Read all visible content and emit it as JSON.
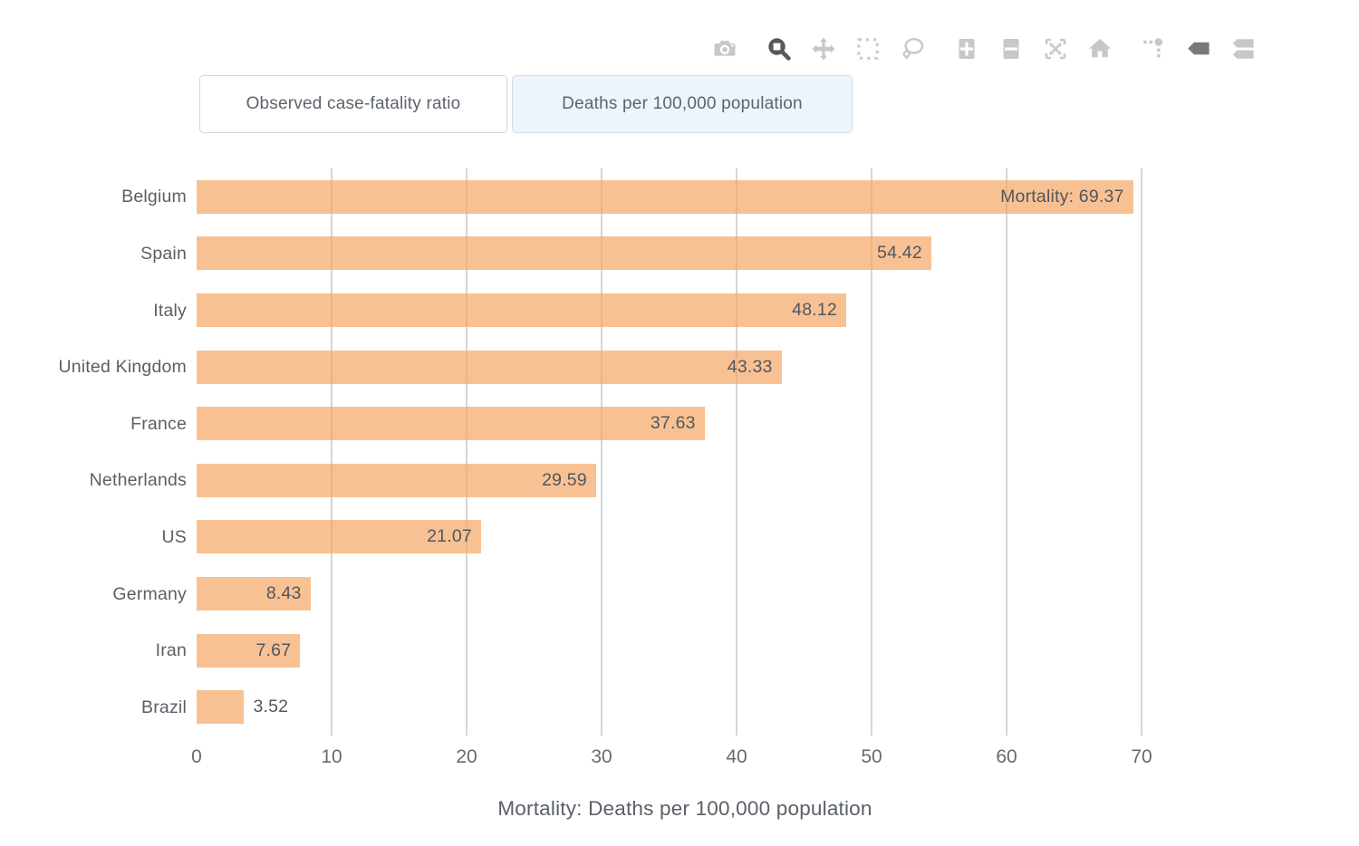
{
  "buttons": [
    {
      "label": "Observed case-fatality ratio",
      "active": false
    },
    {
      "label": "Deaths per 100,000 population",
      "active": true
    }
  ],
  "modebar": {
    "icons": [
      {
        "name": "camera-icon",
        "active": false
      },
      {
        "name": "zoom-icon",
        "active": true
      },
      {
        "name": "pan-icon",
        "active": false
      },
      {
        "name": "box-select-icon",
        "active": false
      },
      {
        "name": "lasso-select-icon",
        "active": false
      },
      {
        "name": "zoom-in-icon",
        "active": false
      },
      {
        "name": "zoom-out-icon",
        "active": false
      },
      {
        "name": "autoscale-icon",
        "active": false
      },
      {
        "name": "reset-axes-home-icon",
        "active": false
      },
      {
        "name": "toggle-spikelines-icon",
        "active": false
      },
      {
        "name": "hover-closest-icon",
        "active": true
      },
      {
        "name": "hover-compare-icon",
        "active": false
      }
    ]
  },
  "chart_data": {
    "type": "bar",
    "orientation": "horizontal",
    "categories": [
      "Belgium",
      "Spain",
      "Italy",
      "United Kingdom",
      "France",
      "Netherlands",
      "US",
      "Germany",
      "Iran",
      "Brazil"
    ],
    "values": [
      69.37,
      54.42,
      48.12,
      43.33,
      37.63,
      29.59,
      21.07,
      8.43,
      7.67,
      3.52
    ],
    "bar_labels": [
      "Mortality: 69.37",
      "54.42",
      "48.12",
      "43.33",
      "37.63",
      "29.59",
      "21.07",
      "8.43",
      "7.67",
      "3.52"
    ],
    "xlabel": "Mortality: Deaths per 100,000 population",
    "ylabel": "",
    "xticks": [
      0,
      10,
      20,
      30,
      40,
      50,
      60,
      70
    ],
    "xlim": [
      0,
      74
    ],
    "grid": true,
    "legend": false,
    "bar_color": "rgba(244,164,96,0.68)",
    "grid_color": "#d5d5d5",
    "text_color": "#5a6067"
  }
}
